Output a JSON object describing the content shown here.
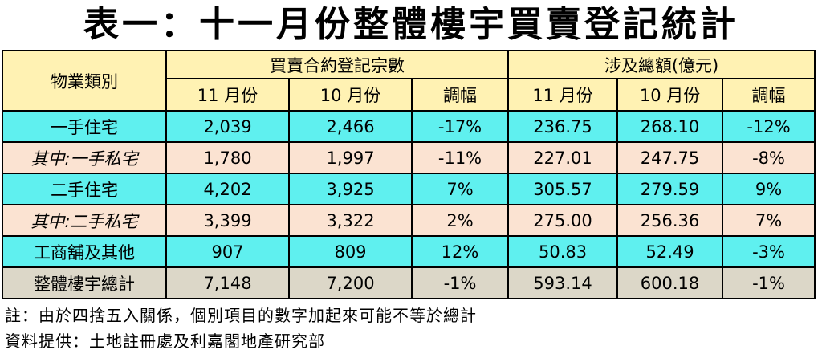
{
  "title": "表一：十一月份整體樓宇買賣登記統計",
  "header": {
    "category": "物業類別",
    "group_count": "買賣合約登記宗數",
    "group_value": "涉及總額(億元)",
    "nov": "11 月份",
    "oct": "10 月份",
    "change": "調幅"
  },
  "rows": [
    {
      "label": "一手住宅",
      "nov_count": "2,039",
      "oct_count": "2,466",
      "count_change": "-17%",
      "nov_value": "236.75",
      "oct_value": "268.10",
      "value_change": "-12%"
    },
    {
      "label": "其中:一手私宅",
      "nov_count": "1,780",
      "oct_count": "1,997",
      "count_change": "-11%",
      "nov_value": "227.01",
      "oct_value": "247.75",
      "value_change": "-8%"
    },
    {
      "label": "二手住宅",
      "nov_count": "4,202",
      "oct_count": "3,925",
      "count_change": "7%",
      "nov_value": "305.57",
      "oct_value": "279.59",
      "value_change": "9%"
    },
    {
      "label": "其中:二手私宅",
      "nov_count": "3,399",
      "oct_count": "3,322",
      "count_change": "2%",
      "nov_value": "275.00",
      "oct_value": "256.36",
      "value_change": "7%"
    },
    {
      "label": "工商舖及其他",
      "nov_count": "907",
      "oct_count": "809",
      "count_change": "12%",
      "nov_value": "50.83",
      "oct_value": "52.49",
      "value_change": "-3%"
    },
    {
      "label": "整體樓宇總計",
      "nov_count": "7,148",
      "oct_count": "7,200",
      "count_change": "-1%",
      "nov_value": "593.14",
      "oct_value": "600.18",
      "value_change": "-1%"
    }
  ],
  "colors": {
    "header_bg": "#fff2b3",
    "main_row_bg": "#5ff0ef",
    "sub_row_bg": "#fbe3d2",
    "total_row_bg": "#dcd7c8"
  },
  "footnotes": {
    "note": "註：由於四捨五入關係，個別項目的數字加起來可能不等於總計",
    "source": "資料提供：土地註冊處及利嘉閣地產研究部"
  }
}
